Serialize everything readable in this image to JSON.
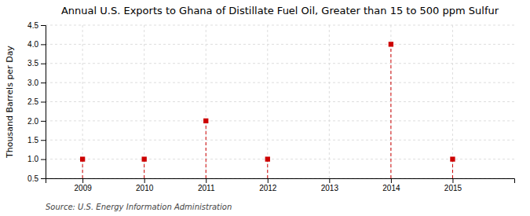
{
  "chart_data": {
    "type": "scatter",
    "title": "Annual U.S. Exports to Ghana of Distillate Fuel Oil, Greater than 15 to 500 ppm Sulfur",
    "ylabel": "Thousand Barrels per Day",
    "source": "Source: U.S. Energy Information Administration",
    "x": [
      2009,
      2010,
      2011,
      2012,
      2014,
      2015
    ],
    "values": [
      1.0,
      1.0,
      2.0,
      1.0,
      4.0,
      1.0
    ],
    "xlim": [
      2008.4,
      2016.0
    ],
    "ylim": [
      0.5,
      4.5
    ],
    "xticks": [
      2009,
      2010,
      2011,
      2012,
      2013,
      2014,
      2015
    ],
    "yticks": [
      0.5,
      {
        "value": 1.0,
        "label": "1.0"
      },
      1.5,
      {
        "value": 2.0,
        "label": "2.0"
      },
      2.5,
      {
        "value": 3.0,
        "label": "3.0"
      },
      3.5,
      {
        "value": 4.0,
        "label": "4.0"
      },
      4.5
    ],
    "color": "#cc0000",
    "marker": "square",
    "line_style": "dashed",
    "grid": true
  }
}
